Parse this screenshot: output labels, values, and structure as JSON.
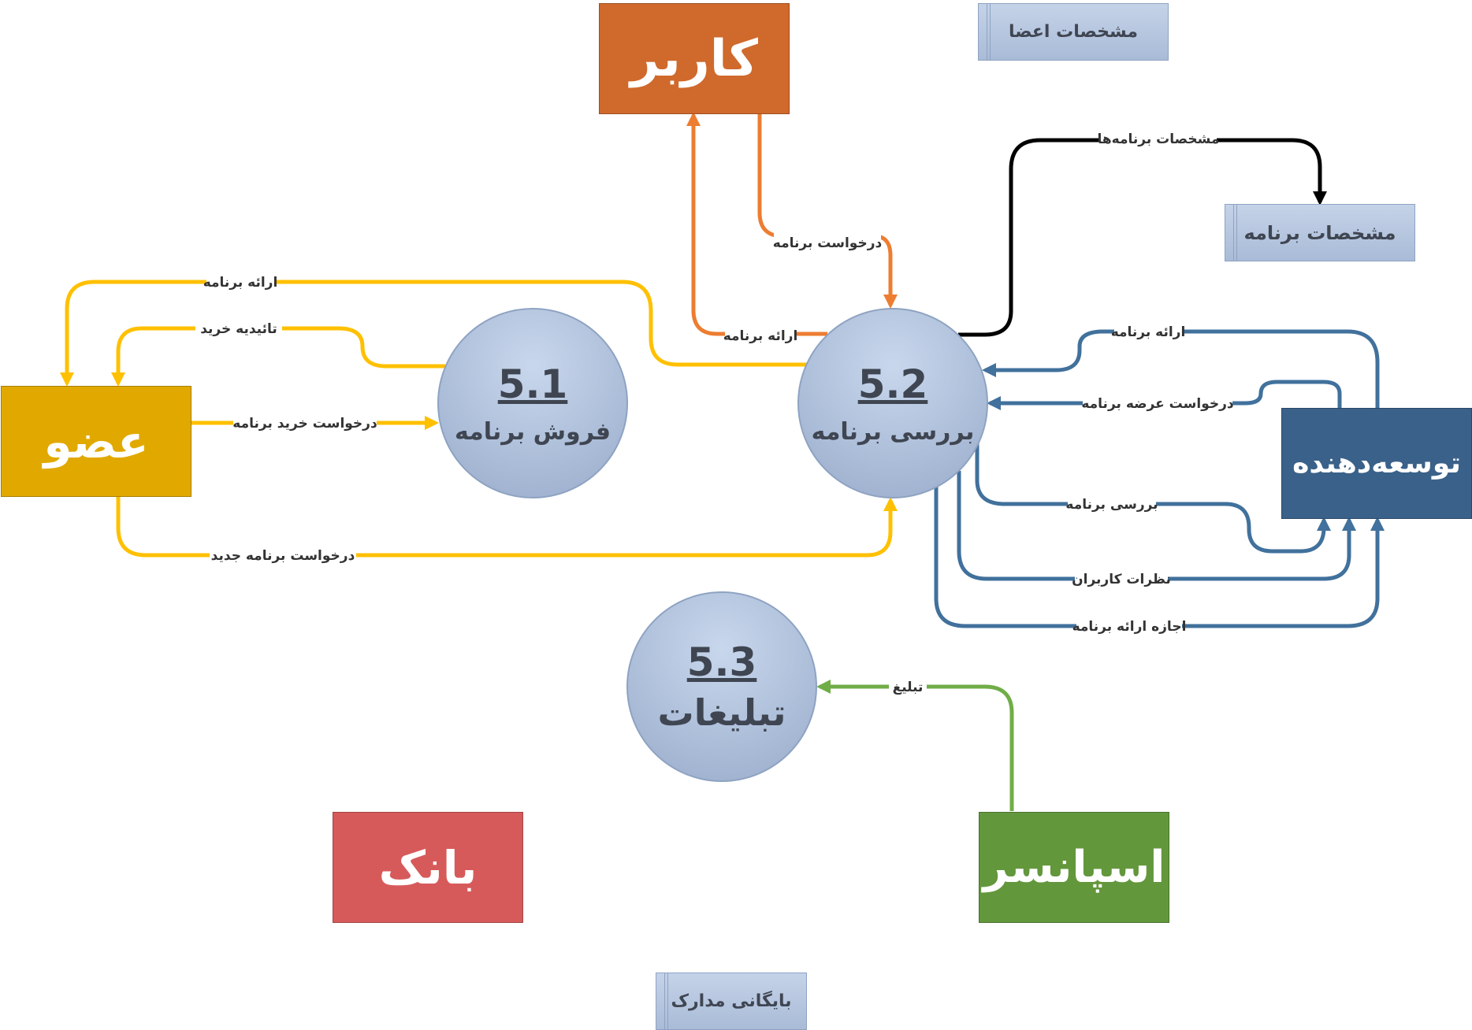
{
  "entities": {
    "user": {
      "label": "کاربر",
      "color": "#d0692c"
    },
    "member": {
      "label": "عضو",
      "color": "#e1a900"
    },
    "developer": {
      "label": "توسعه‌دهنده",
      "color": "#3a6189"
    },
    "sponsor": {
      "label": "اسپانسر",
      "color": "#63973c"
    },
    "bank": {
      "label": "بانک",
      "color": "#d75a5a"
    }
  },
  "processes": {
    "p51": {
      "id": "5.1",
      "name": "فروش برنامه"
    },
    "p52": {
      "id": "5.2",
      "name": "بررسی برنامه"
    },
    "p53": {
      "id": "5.3",
      "name": "تبلیغات"
    }
  },
  "stores": {
    "members_spec": "مشخصات اعضا",
    "program_spec": "مشخصات برنامه",
    "archive": "بایگانی مدارک"
  },
  "flows": {
    "user_request": "درخواست برنامه",
    "user_present": "ارائه برنامه",
    "program_specs": "مشخصات برنامه‌ها",
    "member_present": "ارائه برنامه",
    "purchase_confirm": "تائیدیه خرید",
    "purchase_request": "درخواست خرید برنامه",
    "new_program_request": "درخواست برنامه جدید",
    "dev_present": "ارائه برنامه",
    "offer_request": "درخواست عرضه برنامه",
    "review": "بررسی برنامه",
    "user_comments": "نظرات کاربران",
    "present_permission": "اجازه ارائه برنامه",
    "ad": "تبلیغ"
  },
  "colors": {
    "orange_flow": "#ed7d31",
    "yellow_flow": "#ffc000",
    "blue_flow": "#41719c",
    "green_flow": "#70ad47",
    "black_flow": "#000000"
  }
}
